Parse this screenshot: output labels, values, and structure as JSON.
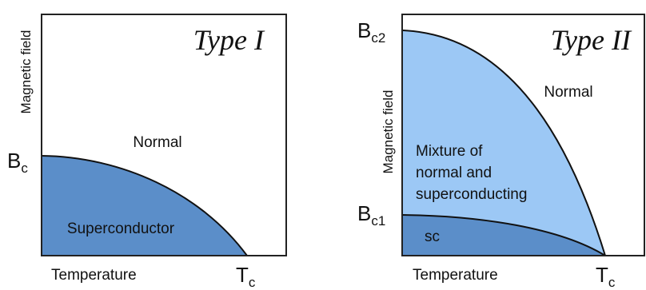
{
  "left_panel": {
    "title": "Type I",
    "y_axis_label": "Magnetic field",
    "x_axis_label": "Temperature",
    "critical_field": {
      "symbol": "B",
      "subscript": "c"
    },
    "critical_temp": {
      "symbol": "T",
      "subscript": "c"
    },
    "region_normal": "Normal",
    "region_superconductor": "Superconductor",
    "colors": {
      "superconductor_fill": "#5b8ec9",
      "border": "#222222"
    }
  },
  "right_panel": {
    "title": "Type II",
    "y_axis_label": "Magnetic field",
    "x_axis_label": "Temperature",
    "upper_critical_field": {
      "symbol": "B",
      "subscript": "c2"
    },
    "lower_critical_field": {
      "symbol": "B",
      "subscript": "c1"
    },
    "critical_temp": {
      "symbol": "T",
      "subscript": "c"
    },
    "region_normal": "Normal",
    "region_mixture_lines": [
      "Mixture of",
      "normal and",
      "superconducting"
    ],
    "region_sc": "sc",
    "colors": {
      "mixture_fill": "#9cc8f5",
      "sc_fill": "#5b8ec9",
      "border": "#222222"
    }
  }
}
